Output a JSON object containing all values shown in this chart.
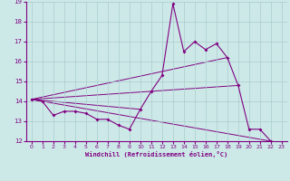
{
  "xlabel": "Windchill (Refroidissement éolien,°C)",
  "background_color": "#cce9e8",
  "line_color": "#800080",
  "grid_color": "#aacccc",
  "xlim": [
    -0.5,
    23.5
  ],
  "ylim": [
    12,
    19
  ],
  "yticks": [
    12,
    13,
    14,
    15,
    16,
    17,
    18,
    19
  ],
  "xticks": [
    0,
    1,
    2,
    3,
    4,
    5,
    6,
    7,
    8,
    9,
    10,
    11,
    12,
    13,
    14,
    15,
    16,
    17,
    18,
    19,
    20,
    21,
    22,
    23
  ],
  "line1_x": [
    0,
    1,
    2,
    3,
    4,
    5,
    6,
    7,
    8,
    9,
    10,
    11,
    12,
    13,
    14,
    15,
    16,
    17,
    18,
    19,
    20,
    21,
    22
  ],
  "line1_y": [
    14.1,
    14.0,
    13.3,
    13.5,
    13.5,
    13.4,
    13.1,
    13.1,
    12.8,
    12.6,
    13.6,
    14.5,
    15.3,
    18.9,
    16.5,
    17.0,
    16.6,
    16.9,
    16.2,
    14.8,
    12.6,
    12.6,
    12.0
  ],
  "line2_x": [
    0,
    18
  ],
  "line2_y": [
    14.1,
    16.2
  ],
  "line3_x": [
    0,
    19
  ],
  "line3_y": [
    14.1,
    14.8
  ],
  "line4_x": [
    0,
    22
  ],
  "line4_y": [
    14.1,
    12.0
  ],
  "line5_x": [
    0,
    10
  ],
  "line5_y": [
    14.1,
    13.6
  ]
}
